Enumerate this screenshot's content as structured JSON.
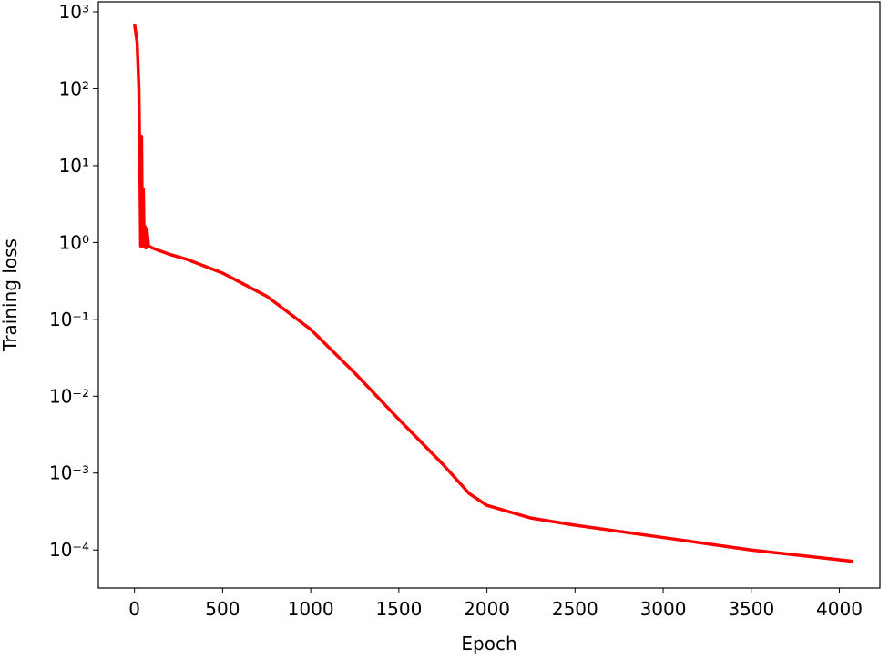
{
  "chart_data": {
    "type": "line",
    "xlabel": "Epoch",
    "ylabel": "Training loss",
    "yscale": "log",
    "xlim": [
      -205,
      4230
    ],
    "ylim": [
      3.2e-05,
      1350
    ],
    "xticks": [
      0,
      500,
      1000,
      1500,
      2000,
      2500,
      3000,
      3500,
      4000
    ],
    "yticks": [
      {
        "value": 0.0001,
        "label": "10⁻⁴"
      },
      {
        "value": 0.001,
        "label": "10⁻³"
      },
      {
        "value": 0.01,
        "label": "10⁻²"
      },
      {
        "value": 0.1,
        "label": "10⁻¹"
      },
      {
        "value": 1,
        "label": "10⁰"
      },
      {
        "value": 10,
        "label": "10¹"
      },
      {
        "value": 100,
        "label": "10²"
      },
      {
        "value": 1000,
        "label": "10³"
      }
    ],
    "series": [
      {
        "color": "#ff0000",
        "x": [
          0,
          15,
          25,
          32,
          35,
          40,
          45,
          50,
          55,
          60,
          65,
          70,
          80,
          100,
          200,
          300,
          500,
          750,
          1000,
          1250,
          1500,
          1750,
          1900,
          2000,
          2250,
          2500,
          3000,
          3500,
          4080
        ],
        "values": [
          700,
          400,
          100,
          5,
          0.9,
          24,
          0.9,
          5,
          0.9,
          1.6,
          0.85,
          1.5,
          0.9,
          0.85,
          0.7,
          0.6,
          0.4,
          0.2,
          0.074,
          0.02,
          0.005,
          0.0013,
          0.00054,
          0.00038,
          0.00026,
          0.00021,
          0.000145,
          0.0001,
          7.1e-05
        ]
      }
    ]
  }
}
